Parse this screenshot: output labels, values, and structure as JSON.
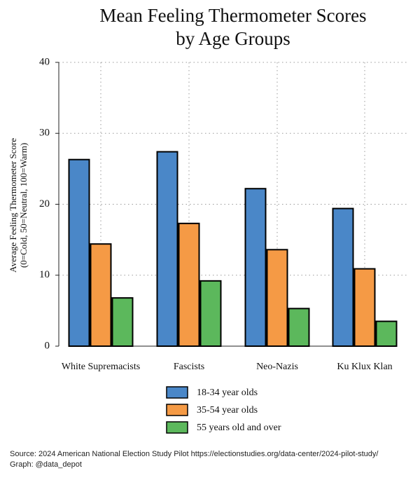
{
  "chart_data": {
    "type": "bar",
    "title": [
      "Mean Feeling Thermometer Scores",
      "by Age Groups"
    ],
    "ylabel": [
      "Average Feeling Thermometer Score",
      "(0=Cold, 50=Neutral, 100=Warm)"
    ],
    "xlabel": "",
    "ylim": [
      0,
      40
    ],
    "yticks": [
      0,
      10,
      20,
      30,
      40
    ],
    "grid": true,
    "legend_position": "bottom",
    "categories": [
      "White Supremacists",
      "Fascists",
      "Neo-Nazis",
      "Ku Klux Klan"
    ],
    "series": [
      {
        "name": "18-34 year olds",
        "color": "#4a87c8",
        "values": [
          26.3,
          27.4,
          22.2,
          19.4
        ]
      },
      {
        "name": "35-54 year olds",
        "color": "#f59a45",
        "values": [
          14.4,
          17.3,
          13.6,
          10.9
        ]
      },
      {
        "name": "55 years old and over",
        "color": "#5cb85c",
        "values": [
          6.8,
          9.2,
          5.3,
          3.5
        ]
      }
    ]
  },
  "source": {
    "line1": "Source: 2024 American National Election Study Pilot https://electionstudies.org/data-center/2024-pilot-study/",
    "line2": "Graph: @data_depot"
  }
}
